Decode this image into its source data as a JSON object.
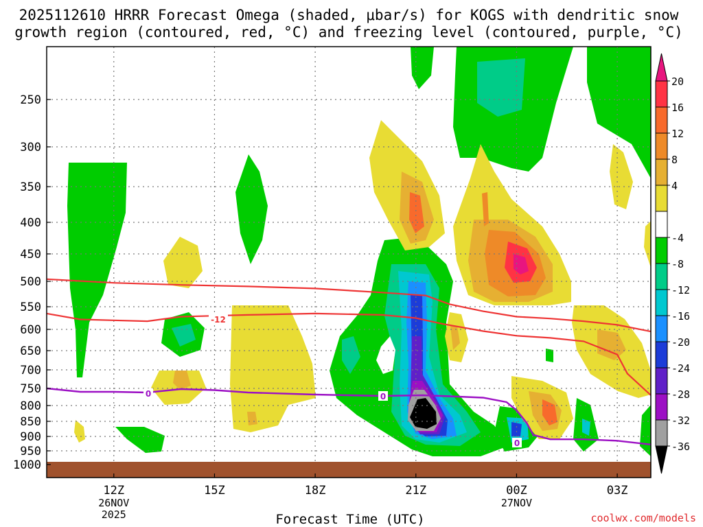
{
  "chart_data": {
    "type": "heatmap",
    "title_line1": "2025112610 HRRR Forecast Omega (shaded, μbar/s) for KOGS with dendritic snow",
    "title_line2": "growth region (contoured, red, °C) and freezing level (contoured, purple, °C)",
    "xlabel": "Forecast Time (UTC)",
    "credit": "coolwx.com/models",
    "x_ticks": [
      {
        "hour": 12,
        "label": "12Z",
        "sub1": "26NOV",
        "sub2": "2025"
      },
      {
        "hour": 15,
        "label": "15Z",
        "sub1": "",
        "sub2": ""
      },
      {
        "hour": 18,
        "label": "18Z",
        "sub1": "",
        "sub2": ""
      },
      {
        "hour": 21,
        "label": "21Z",
        "sub1": "",
        "sub2": ""
      },
      {
        "hour": 24,
        "label": "00Z",
        "sub1": "27NOV",
        "sub2": ""
      },
      {
        "hour": 27,
        "label": "03Z",
        "sub1": "",
        "sub2": ""
      }
    ],
    "x_range_hours": [
      10,
      28
    ],
    "y_ticks": [
      250,
      300,
      350,
      400,
      450,
      500,
      550,
      600,
      650,
      700,
      750,
      800,
      850,
      900,
      950,
      1000
    ],
    "y_tick_labels": [
      "250",
      "300",
      "350",
      "400",
      "450",
      "500",
      "550",
      "600",
      "650",
      "700",
      "750",
      "800",
      "850",
      "900",
      "950",
      "1000"
    ],
    "colorbar": {
      "label_values": [
        "20",
        "16",
        "12",
        "8",
        "4",
        "-4",
        "-8",
        "-12",
        "-16",
        "-20",
        "-24",
        "-28",
        "-32",
        "-36"
      ],
      "bins": [
        {
          "color": "#e8157f",
          "range": ">20"
        },
        {
          "color": "#ff3344",
          "range": "16 to 20"
        },
        {
          "color": "#f86a2c",
          "range": "12 to 16"
        },
        {
          "color": "#ee8a28",
          "range": "8 to 12"
        },
        {
          "color": "#e6b032",
          "range": "4 to 8"
        },
        {
          "color": "#e8dc34",
          "range": "0 to 4"
        },
        {
          "color": "#ffffff",
          "range": "-4 to 0"
        },
        {
          "color": "#00cc00",
          "range": "-8 to -4"
        },
        {
          "color": "#00cc88",
          "range": "-12 to -8"
        },
        {
          "color": "#00c8d0",
          "range": "-16 to -12"
        },
        {
          "color": "#1a90ff",
          "range": "-20 to -16"
        },
        {
          "color": "#1c3cd8",
          "range": "-24 to -20"
        },
        {
          "color": "#6020c8",
          "range": "-28 to -24"
        },
        {
          "color": "#9c10c4",
          "range": "-32 to -28"
        },
        {
          "color": "#a0a0a0",
          "range": "-36 to -32"
        },
        {
          "color": "#000000",
          "range": "<-36"
        }
      ]
    },
    "contours": {
      "dgz_upper": {
        "label": "",
        "color": "#ee3333",
        "points": [
          [
            10.0,
            496
          ],
          [
            12,
            503
          ],
          [
            14,
            507
          ],
          [
            16,
            510
          ],
          [
            18,
            514
          ],
          [
            20,
            522
          ],
          [
            21.3,
            528
          ],
          [
            22,
            545
          ],
          [
            23,
            560
          ],
          [
            24,
            572
          ],
          [
            25,
            576
          ],
          [
            26,
            582
          ],
          [
            27,
            590
          ],
          [
            28,
            605
          ]
        ]
      },
      "dgz_lower": {
        "label": "-12",
        "color": "#ee3333",
        "points": [
          [
            10.0,
            565
          ],
          [
            11,
            578
          ],
          [
            12,
            580
          ],
          [
            13,
            582
          ],
          [
            14,
            572
          ],
          [
            15,
            570
          ],
          [
            16,
            568
          ],
          [
            18,
            565
          ],
          [
            20,
            568
          ],
          [
            21,
            575
          ],
          [
            21.8,
            588
          ],
          [
            23,
            604
          ],
          [
            24,
            615
          ],
          [
            25,
            620
          ],
          [
            26,
            628
          ],
          [
            27,
            660
          ],
          [
            27.3,
            710
          ],
          [
            28,
            770
          ]
        ]
      },
      "freezing_level": {
        "label": "0",
        "color": "#9c10c4",
        "points": [
          [
            10.0,
            750
          ],
          [
            11,
            760
          ],
          [
            12,
            760
          ],
          [
            13,
            762
          ],
          [
            14,
            752
          ],
          [
            15,
            755
          ],
          [
            16,
            762
          ],
          [
            18,
            768
          ],
          [
            20,
            772
          ],
          [
            21.2,
            770
          ],
          [
            22,
            773
          ],
          [
            23,
            777
          ],
          [
            23.7,
            790
          ],
          [
            24,
            815
          ],
          [
            24.3,
            855
          ],
          [
            24.5,
            895
          ],
          [
            25,
            910
          ],
          [
            26,
            910
          ],
          [
            27,
            915
          ],
          [
            28,
            928
          ]
        ]
      }
    }
  }
}
